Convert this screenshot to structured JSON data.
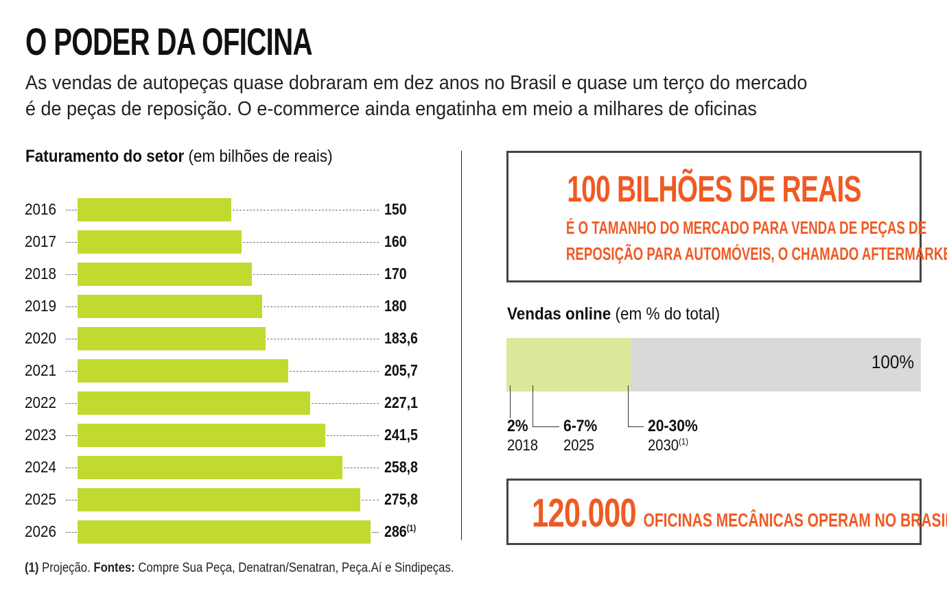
{
  "title": "O PODER DA OFICINA",
  "subtitle_line1": "As vendas de autopeças quase dobraram em dez anos no Brasil e quase um terço do mercado",
  "subtitle_line2": "é de peças de reposição. O e-commerce ainda engatinha em meio a milhares de oficinas",
  "chart_data": [
    {
      "type": "bar",
      "orientation": "horizontal",
      "title": "Faturamento do setor",
      "subtitle": "(em bilhões de reais)",
      "categories": [
        "2016",
        "2017",
        "2018",
        "2019",
        "2020",
        "2021",
        "2022",
        "2023",
        "2024",
        "2025",
        "2026"
      ],
      "values": [
        150,
        160,
        170,
        180,
        183.6,
        205.7,
        227.1,
        241.5,
        258.8,
        275.8,
        286
      ],
      "labels": [
        "150",
        "160",
        "170",
        "180",
        "183,6",
        "205,7",
        "227,1",
        "241,5",
        "258,8",
        "275,8",
        "286"
      ],
      "label_notes": [
        "",
        "",
        "",
        "",
        "",
        "",
        "",
        "",
        "",
        "",
        "(1)"
      ],
      "color": "#c2d92f",
      "xlim": [
        0,
        300
      ]
    },
    {
      "type": "bar",
      "orientation": "stacked-horizontal",
      "title": "Vendas online",
      "subtitle": "(em % do total)",
      "total_label": "100%",
      "series": [
        {
          "name": "2018",
          "label": "2%",
          "value": 2,
          "note": "",
          "color": "#111111"
        },
        {
          "name": "2025",
          "label": "6-7%",
          "value": 7,
          "note": "",
          "color": "#c2d92f"
        },
        {
          "name": "2030",
          "label": "20-30%",
          "value": 30,
          "note": "(1)",
          "color": "#dce89a"
        }
      ],
      "background_color": "#d9d9d9"
    }
  ],
  "box1": {
    "headline": "100 BILHÕES DE REAIS",
    "line1": "É O TAMANHO DO MERCADO PARA VENDA DE PEÇAS DE",
    "line2": "REPOSIÇÃO PARA AUTOMÓVEIS, O CHAMADO AFTERMARKET"
  },
  "box2": {
    "number": "120.000",
    "text": "OFICINAS MECÂNICAS OPERAM NO BRASIL"
  },
  "footnote": {
    "mark": "(1)",
    "note": " Projeção. ",
    "sources_label": "Fontes:",
    "sources": " Compre Sua Peça, Denatran/Senatran, Peça.Aí e Sindipeças."
  },
  "colors": {
    "accent": "#ef5a24",
    "bar": "#c2d92f"
  }
}
